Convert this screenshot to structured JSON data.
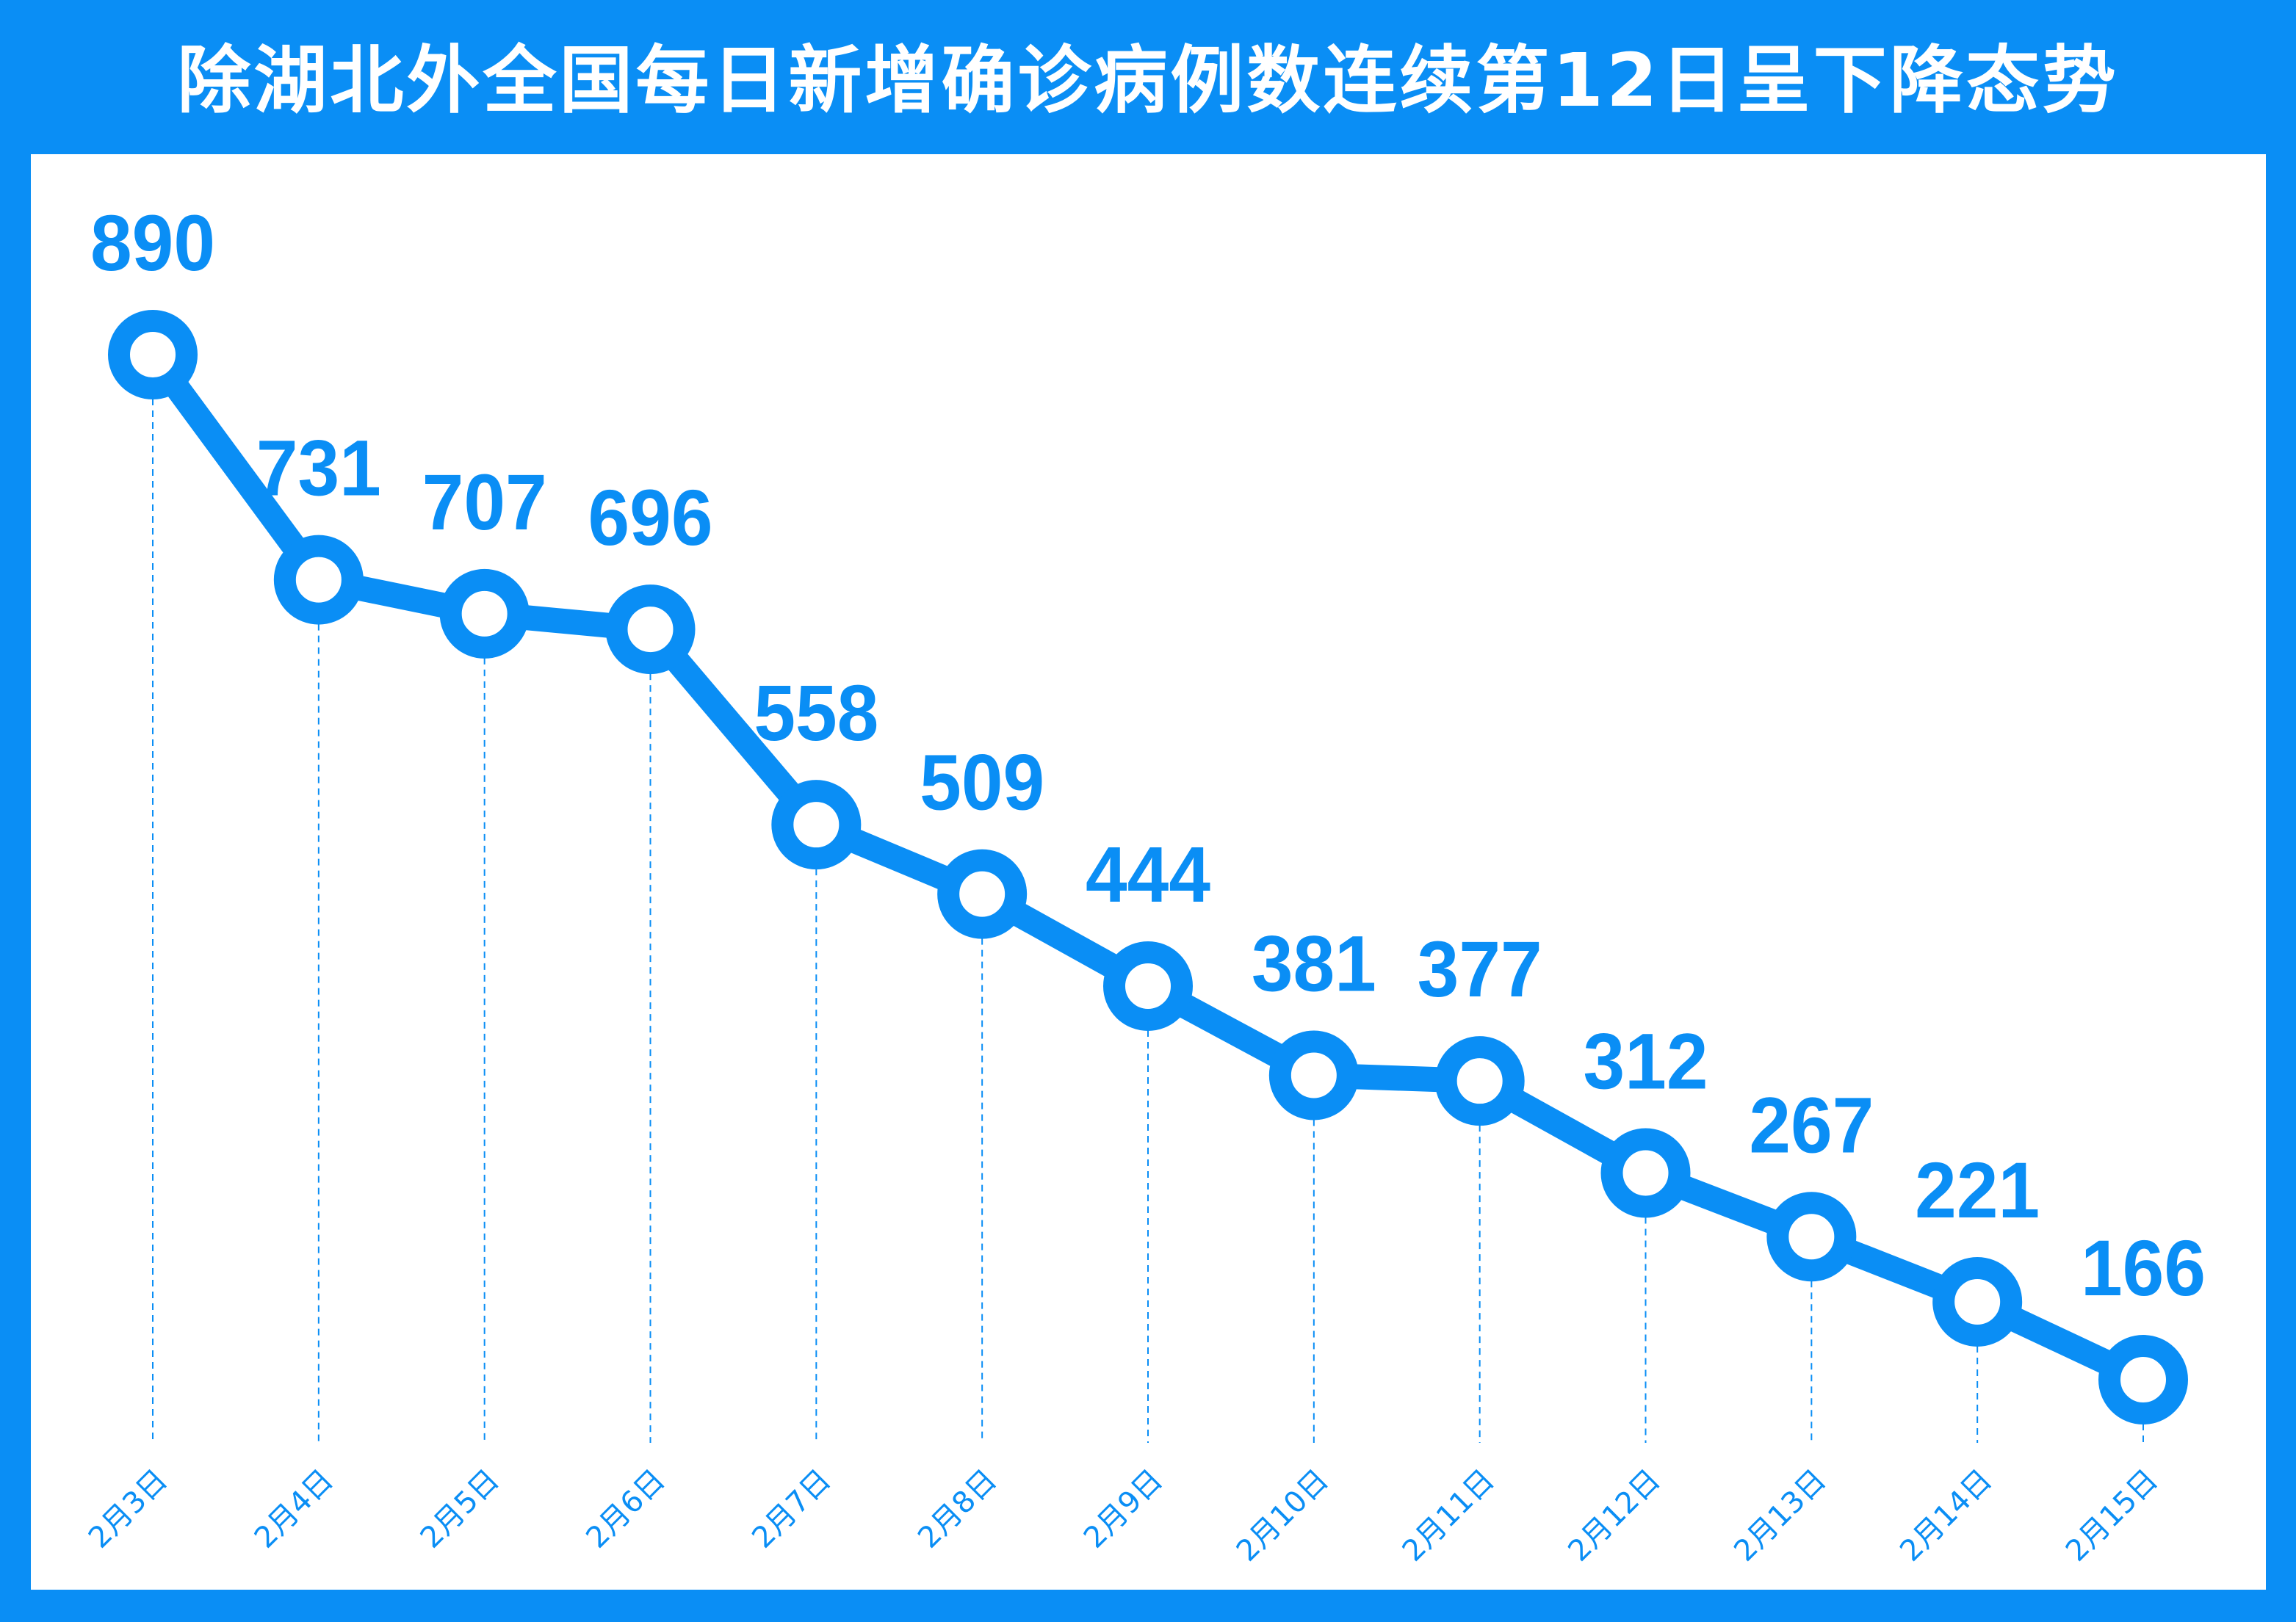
{
  "title": "除湖北外全国每日新增确诊病例数连续第12日呈下降态势",
  "colors": {
    "accent": "#0a8ef5",
    "background": "#ffffff"
  },
  "chart_data": {
    "type": "line",
    "title": "除湖北外全国每日新增确诊病例数连续第12日呈下降态势",
    "categories": [
      "2月3日",
      "2月4日",
      "2月5日",
      "2月6日",
      "2月7日",
      "2月8日",
      "2月9日",
      "2月10日",
      "2月11日",
      "2月12日",
      "2月13日",
      "2月14日",
      "2月15日"
    ],
    "values": [
      890,
      731,
      707,
      696,
      558,
      509,
      444,
      381,
      377,
      312,
      267,
      221,
      166
    ],
    "xlabel": "",
    "ylabel": "",
    "grid": "vertical dashed drop lines",
    "legend": "none"
  }
}
